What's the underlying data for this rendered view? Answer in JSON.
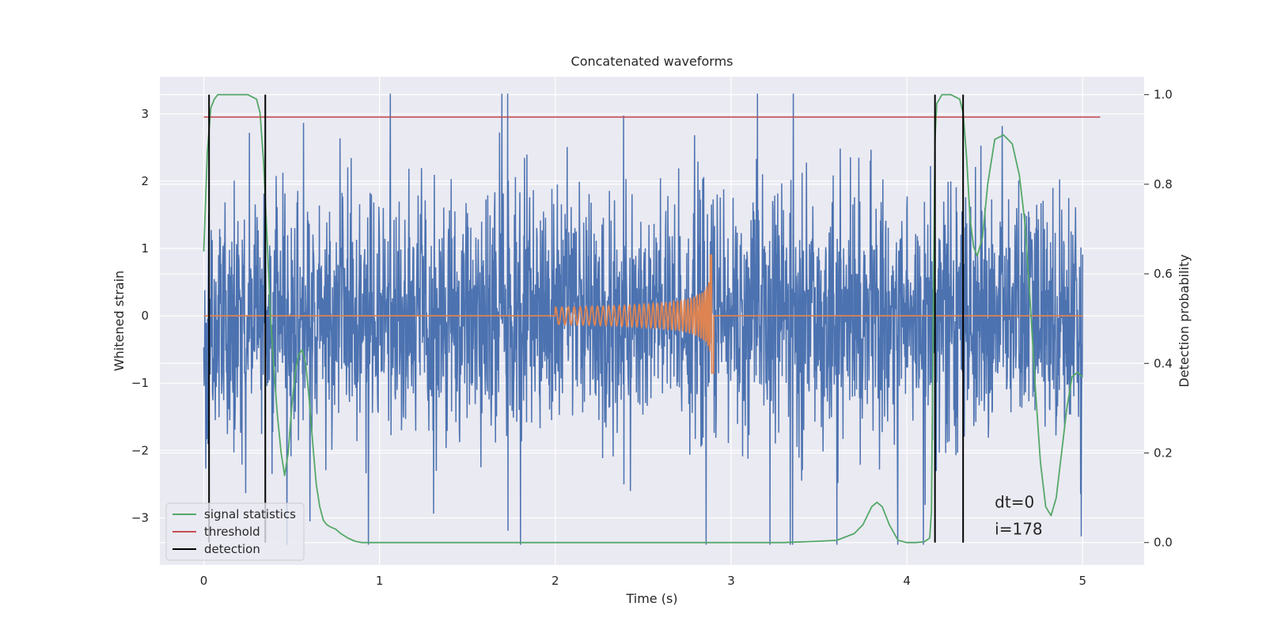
{
  "chart_data": {
    "type": "line",
    "title": "Concatenated waveforms",
    "xlabel": "Time (s)",
    "ylabel_left": "Whitened strain",
    "ylabel_right": "Detection probability",
    "xlim": [
      -0.25,
      5.35
    ],
    "ylim_left": [
      -3.7,
      3.55
    ],
    "ylim_right": [
      -0.05,
      1.04
    ],
    "x_ticks": [
      "0",
      "1",
      "2",
      "3",
      "4",
      "5"
    ],
    "y_left_ticks": [
      "−3",
      "−2",
      "−1",
      "0",
      "1",
      "2",
      "3"
    ],
    "y_right_ticks": [
      "0.0",
      "0.2",
      "0.4",
      "0.6",
      "0.8",
      "1.0"
    ],
    "grid": true,
    "legend_location": "lower left",
    "annotations": [
      "dt=0",
      "i=178"
    ],
    "legend": {
      "signal_statistics": "signal statistics",
      "threshold": "threshold",
      "detection": "detection"
    },
    "colors": {
      "background": "#eaeaf2",
      "noise": "#4c72b0",
      "waveform": "#dd8452",
      "signal_statistics": "#55a868",
      "threshold": "#c44e52",
      "detection": "#000000"
    },
    "series": [
      {
        "kind": "noise",
        "axis": "left",
        "x_range": [
          0,
          5
        ],
        "sigma": 0.9,
        "max_abs": 3.4
      },
      {
        "kind": "chirp",
        "axis": "left",
        "x_range": [
          0,
          5
        ],
        "start": 2.0,
        "merger": 2.9,
        "amplitude_start": 0.05,
        "amplitude_peak": 0.9,
        "amplitude_trough": -0.85
      },
      {
        "name": "signal statistics",
        "axis": "right",
        "x": [
          0,
          0.02,
          0.04,
          0.06,
          0.08,
          0.1,
          0.15,
          0.2,
          0.25,
          0.3,
          0.32,
          0.34,
          0.36,
          0.38,
          0.4,
          0.42,
          0.44,
          0.46,
          0.48,
          0.5,
          0.52,
          0.54,
          0.56,
          0.58,
          0.6,
          0.62,
          0.64,
          0.66,
          0.68,
          0.7,
          0.72,
          0.75,
          0.78,
          0.82,
          0.86,
          0.9,
          1.0,
          1.5,
          2.0,
          2.5,
          3.0,
          3.3,
          3.5,
          3.6,
          3.7,
          3.75,
          3.8,
          3.83,
          3.86,
          3.9,
          3.95,
          4.0,
          4.05,
          4.1,
          4.13,
          4.14,
          4.15,
          4.16,
          4.17,
          4.2,
          4.25,
          4.3,
          4.32,
          4.34,
          4.36,
          4.38,
          4.4,
          4.43,
          4.46,
          4.5,
          4.55,
          4.6,
          4.64,
          4.67,
          4.7,
          4.73,
          4.76,
          4.79,
          4.82,
          4.85,
          4.88,
          4.91,
          4.94,
          4.97,
          5.0
        ],
        "values": [
          0.65,
          0.87,
          0.97,
          0.99,
          1.0,
          1.0,
          1.0,
          1.0,
          1.0,
          0.99,
          0.96,
          0.85,
          0.68,
          0.5,
          0.38,
          0.28,
          0.2,
          0.15,
          0.2,
          0.3,
          0.38,
          0.42,
          0.43,
          0.4,
          0.32,
          0.22,
          0.13,
          0.08,
          0.05,
          0.04,
          0.035,
          0.03,
          0.02,
          0.01,
          0.003,
          0.0,
          0.0,
          0.0,
          0.0,
          0.0,
          0.0,
          0.0,
          0.003,
          0.005,
          0.02,
          0.04,
          0.08,
          0.09,
          0.08,
          0.04,
          0.005,
          0.0,
          0.0,
          0.002,
          0.01,
          0.07,
          0.5,
          0.9,
          0.98,
          1.0,
          1.0,
          0.99,
          0.96,
          0.86,
          0.72,
          0.66,
          0.64,
          0.68,
          0.8,
          0.9,
          0.91,
          0.89,
          0.82,
          0.72,
          0.55,
          0.35,
          0.18,
          0.08,
          0.06,
          0.1,
          0.2,
          0.3,
          0.37,
          0.38,
          0.37
        ]
      },
      {
        "name": "threshold",
        "axis": "right",
        "x": [
          0,
          5.1
        ],
        "values": [
          0.95,
          0.95
        ]
      }
    ],
    "detections": [
      0.03,
      0.35,
      4.16,
      4.32
    ]
  }
}
